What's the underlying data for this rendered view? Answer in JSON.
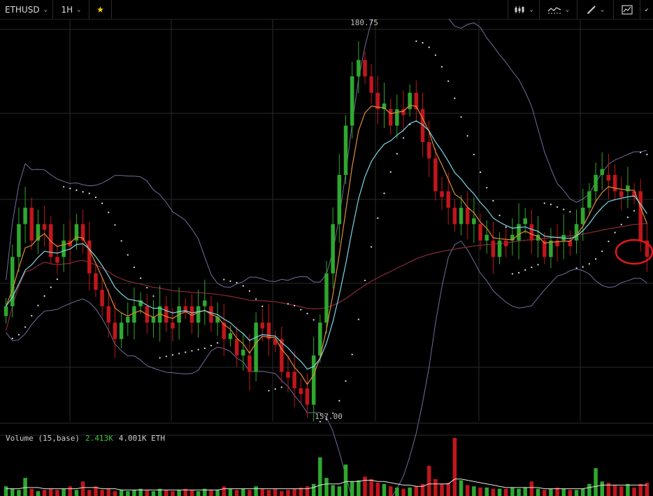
{
  "toolbar": {
    "symbol": "ETHUSD",
    "interval": "1H",
    "favorite_icon": "star-icon",
    "right_tools": [
      "candle-style-icon",
      "indicators-icon",
      "draw-pencil-icon",
      "chart-snapshot-icon"
    ]
  },
  "colors": {
    "background": "#000000",
    "grid": "#2a2a2a",
    "up": "#2ea82e",
    "down": "#c0161c",
    "ema_fast": "#e08a3c",
    "ema_slow": "#7fd7e6",
    "ma_long": "#8a2a3a",
    "bollinger": "#6f6f9a",
    "psar": "#e6e6e6",
    "volume_ma": "#e6e6e6",
    "annotation": "#e01a1a"
  },
  "chart_data": [
    {
      "type": "candlestick",
      "ylim": [
        157,
        181.5
      ],
      "high_label": "180.75",
      "low_label": "157.00",
      "high_marker_value": 180.75,
      "low_marker_value": 157.0,
      "grid": true,
      "closes": [
        164,
        167,
        169,
        170,
        168,
        169,
        169,
        167,
        167,
        168,
        168,
        169,
        168,
        166,
        165,
        164,
        163,
        162,
        163,
        163,
        164,
        164,
        163,
        163,
        164,
        163,
        163,
        164,
        164,
        163,
        164,
        164,
        163,
        163,
        162,
        162,
        161,
        161,
        160,
        163,
        163,
        162,
        162,
        160,
        160,
        159,
        159,
        158,
        161,
        163,
        166,
        169,
        172,
        175,
        178,
        179,
        178,
        177,
        176,
        176,
        175,
        176,
        176,
        177,
        176,
        174,
        173,
        171,
        171,
        170,
        169,
        170,
        169,
        169,
        168,
        168,
        167,
        168,
        168,
        168,
        169,
        169,
        168,
        168,
        167,
        168,
        168,
        168,
        168,
        169,
        170,
        171,
        172,
        172,
        172,
        171,
        171,
        171,
        171,
        168,
        167
      ],
      "annotation": {
        "shape": "ellipse",
        "note": "red circle around last candle"
      }
    },
    {
      "type": "bar",
      "title": "Volume (15,base)",
      "value_up": "2.413K",
      "value_down": "4.001K ETH",
      "values": [
        0.8,
        0.6,
        0.5,
        1.5,
        0.6,
        0.4,
        0.5,
        0.6,
        0.5,
        0.6,
        0.8,
        0.5,
        1.2,
        0.5,
        0.8,
        0.5,
        0.6,
        0.4,
        0.5,
        0.4,
        0.5,
        0.6,
        0.5,
        0.4,
        0.6,
        0.5,
        0.4,
        0.5,
        0.6,
        0.5,
        0.4,
        0.6,
        0.5,
        0.5,
        0.8,
        0.6,
        0.5,
        0.6,
        0.5,
        0.8,
        0.6,
        0.5,
        0.6,
        0.4,
        0.5,
        0.6,
        0.7,
        0.8,
        1.0,
        3.2,
        1.5,
        0.9,
        0.8,
        2.6,
        1.2,
        1.3,
        1.6,
        1.4,
        1.1,
        1.0,
        0.8,
        0.7,
        0.6,
        0.7,
        0.8,
        1.0,
        2.5,
        1.4,
        1.0,
        1.1,
        4.8,
        1.3,
        0.9,
        0.8,
        0.7,
        0.7,
        0.6,
        0.6,
        0.6,
        0.7,
        0.6,
        0.7,
        1.2,
        0.6,
        0.5,
        0.6,
        0.7,
        0.6,
        0.5,
        0.5,
        0.6,
        1.0,
        2.3,
        1.2,
        1.1,
        0.9,
        0.8,
        1.0,
        0.7,
        1.0,
        1.1
      ],
      "ma_values": [
        0.6,
        0.6,
        0.6,
        0.7,
        0.7,
        0.7,
        0.6,
        0.6,
        0.6,
        0.6,
        0.6,
        0.6,
        0.7,
        0.7,
        0.7,
        0.6,
        0.6,
        0.6,
        0.5,
        0.5,
        0.5,
        0.5,
        0.5,
        0.5,
        0.5,
        0.5,
        0.5,
        0.5,
        0.5,
        0.5,
        0.5,
        0.5,
        0.5,
        0.5,
        0.6,
        0.6,
        0.6,
        0.6,
        0.6,
        0.6,
        0.6,
        0.6,
        0.6,
        0.6,
        0.6,
        0.6,
        0.6,
        0.6,
        0.7,
        0.9,
        1.0,
        1.0,
        1.0,
        1.2,
        1.2,
        1.2,
        1.3,
        1.3,
        1.2,
        1.2,
        1.1,
        1.0,
        0.9,
        0.9,
        0.8,
        0.8,
        1.0,
        1.0,
        1.0,
        1.0,
        1.4,
        1.4,
        1.3,
        1.2,
        1.1,
        1.0,
        0.9,
        0.8,
        0.7,
        0.7,
        0.7,
        0.7,
        0.7,
        0.7,
        0.6,
        0.6,
        0.6,
        0.6,
        0.6,
        0.6,
        0.6,
        0.7,
        0.8,
        0.9,
        0.9,
        0.9,
        0.9,
        0.9,
        0.9,
        0.9,
        0.9
      ]
    }
  ]
}
